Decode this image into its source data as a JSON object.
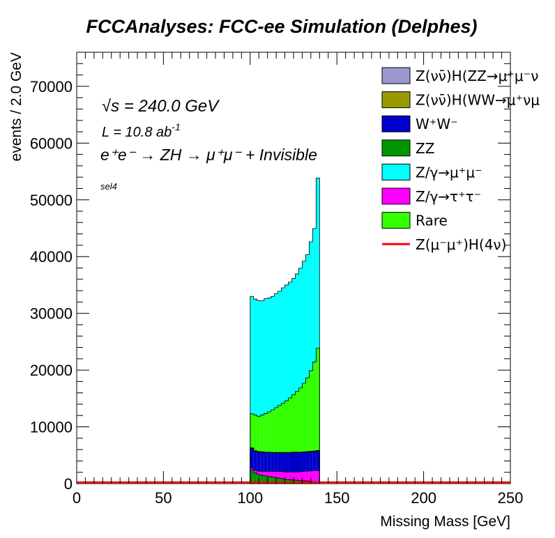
{
  "chart_data": {
    "type": "bar",
    "title": "FCCAnalyses: FCC-ee Simulation (Delphes)",
    "xlabel": "Missing Mass [GeV]",
    "ylabel": "events / 2.0 GeV",
    "xlim": [
      0,
      250
    ],
    "ylim": [
      0,
      76000
    ],
    "xticks": [
      0,
      50,
      100,
      150,
      200,
      250
    ],
    "yticks": [
      0,
      10000,
      20000,
      30000,
      40000,
      50000,
      60000,
      70000
    ],
    "stacked": true,
    "bin_width": 2.0,
    "bin_edges_start": [
      100,
      102,
      104,
      106,
      108,
      110,
      112,
      114,
      116,
      118,
      120,
      122,
      124,
      126,
      128,
      130,
      132,
      134,
      136,
      138
    ],
    "legend_location": "top-right",
    "annotations": {
      "sqrt_s_symbol": "√s",
      "sqrt_s_value": " = 240.0 GeV",
      "lumi": "L = 10.8 ab",
      "lumi_exp": "-1",
      "process": "e⁺e⁻ → ZH → μ⁺μ⁻ + Invisible",
      "selection": "sel4"
    },
    "series": [
      {
        "name": "ZZ",
        "color": "#009600",
        "kind": "fill",
        "values": [
          2400,
          1900,
          1600,
          1450,
          1350,
          1250,
          1150,
          1050,
          950,
          850,
          750,
          700,
          650,
          600,
          550,
          500,
          450,
          400,
          350,
          300
        ]
      },
      {
        "name": "Z/γ→τ⁺τ⁻",
        "color": "#ff00ff",
        "kind": "fill",
        "values": [
          300,
          450,
          600,
          700,
          800,
          900,
          1000,
          1100,
          1200,
          1250,
          1300,
          1350,
          1400,
          1450,
          1550,
          1650,
          1750,
          1850,
          1950,
          2000
        ]
      },
      {
        "name": "W⁺W⁻",
        "color": "#0000cc",
        "kind": "fill",
        "values": [
          3500,
          3350,
          3350,
          3350,
          3300,
          3300,
          3250,
          3250,
          3250,
          3300,
          3350,
          3350,
          3400,
          3400,
          3350,
          3350,
          3350,
          3350,
          3350,
          3450
        ]
      },
      {
        "name": "Z(νν̄)H(WW→μ⁺νμ⁻ν̄)",
        "color": "#999900",
        "kind": "fill",
        "values": [
          60,
          60,
          60,
          60,
          60,
          60,
          60,
          60,
          60,
          60,
          60,
          60,
          60,
          60,
          60,
          60,
          60,
          60,
          60,
          60
        ]
      },
      {
        "name": "Z(νν̄)H(ZZ→μ⁺μ⁻νν̄)",
        "color": "#9999cc",
        "kind": "fill",
        "values": [
          40,
          40,
          40,
          40,
          40,
          40,
          40,
          40,
          40,
          40,
          40,
          40,
          40,
          40,
          40,
          40,
          40,
          40,
          40,
          40
        ]
      },
      {
        "name": "Rare",
        "color": "#33ff00",
        "kind": "fill",
        "values": [
          6000,
          6300,
          6200,
          6500,
          6800,
          7100,
          7500,
          7900,
          8300,
          8700,
          9100,
          9600,
          10100,
          10700,
          11300,
          12100,
          13000,
          14200,
          15700,
          18000
        ]
      },
      {
        "name": "Z/γ→μ⁺μ⁻",
        "color": "#00ffff",
        "kind": "fill",
        "values": [
          20700,
          20400,
          20400,
          20100,
          20250,
          20060,
          20000,
          20100,
          20100,
          20300,
          20400,
          20400,
          20500,
          20700,
          21100,
          21500,
          21700,
          22700,
          23500,
          30000
        ]
      },
      {
        "name": "Z(μ⁻μ⁺)H(4ν)",
        "color": "#ff0000",
        "kind": "line",
        "values": [
          120,
          120,
          120,
          120,
          120,
          120,
          120,
          120,
          120,
          120,
          120,
          120,
          120,
          120,
          120,
          120,
          120,
          120,
          120,
          120
        ]
      }
    ],
    "legend_order": [
      4,
      3,
      2,
      0,
      6,
      1,
      5,
      7
    ],
    "legend_labels": [
      "Z(νν̄)H(ZZ→μ⁺μ⁻ν",
      "Z(νν̄)H(WW→μ⁺νμ",
      "W⁺W⁻",
      "ZZ",
      "Z/γ→μ⁺μ⁻",
      "Z/γ→τ⁺τ⁻",
      "Rare",
      "Z(μ⁻μ⁺)H(4ν)"
    ]
  }
}
